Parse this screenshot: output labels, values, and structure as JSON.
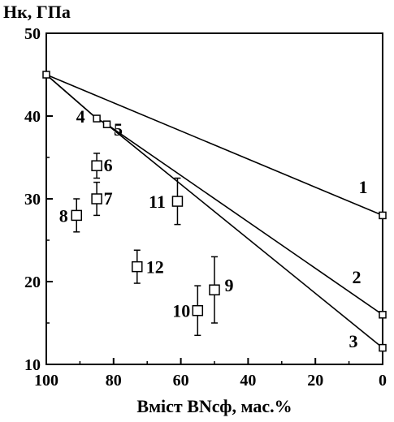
{
  "chart_data": {
    "type": "scatter",
    "title": "",
    "xlabel": "Вміст BNсф, мас.%",
    "ylabel": "Нк, ГПа",
    "xlim": [
      100,
      0
    ],
    "ylim": [
      10,
      50
    ],
    "x_reversed": true,
    "xticks": [
      "100",
      "80",
      "60",
      "40",
      "20",
      "0"
    ],
    "yticks": [
      "50",
      "40",
      "30",
      "20",
      "10"
    ],
    "grid": false,
    "legend": "none",
    "colors": {
      "axis": "#000000",
      "line": "#000000",
      "marker_fill": "#ffffff"
    },
    "lines": [
      {
        "label": "1",
        "points": [
          [
            100,
            45
          ],
          [
            0,
            28
          ]
        ]
      },
      {
        "label": "2",
        "points": [
          [
            100,
            45
          ],
          [
            85,
            39.7
          ],
          [
            82,
            39
          ],
          [
            0,
            16
          ]
        ]
      },
      {
        "label": "3",
        "points": [
          [
            100,
            45
          ],
          [
            85,
            39.7
          ],
          [
            82,
            39
          ],
          [
            0,
            12
          ]
        ]
      }
    ],
    "points": [
      {
        "label": "4",
        "x": 85,
        "y": 39.7,
        "yerr": 0
      },
      {
        "label": "5",
        "x": 82,
        "y": 39,
        "yerr": 0
      },
      {
        "label": "6",
        "x": 85,
        "y": 34,
        "yerr": 1.5
      },
      {
        "label": "7",
        "x": 85,
        "y": 30,
        "yerr": 2
      },
      {
        "label": "8",
        "x": 91,
        "y": 28,
        "yerr": 2
      },
      {
        "label": "9",
        "x": 50,
        "y": 19,
        "yerr": 4
      },
      {
        "label": "10",
        "x": 55,
        "y": 16.5,
        "yerr": 3
      },
      {
        "label": "11",
        "x": 61,
        "y": 29.7,
        "yerr": 2.8
      },
      {
        "label": "12",
        "x": 73,
        "y": 21.8,
        "yerr": 2
      }
    ]
  }
}
